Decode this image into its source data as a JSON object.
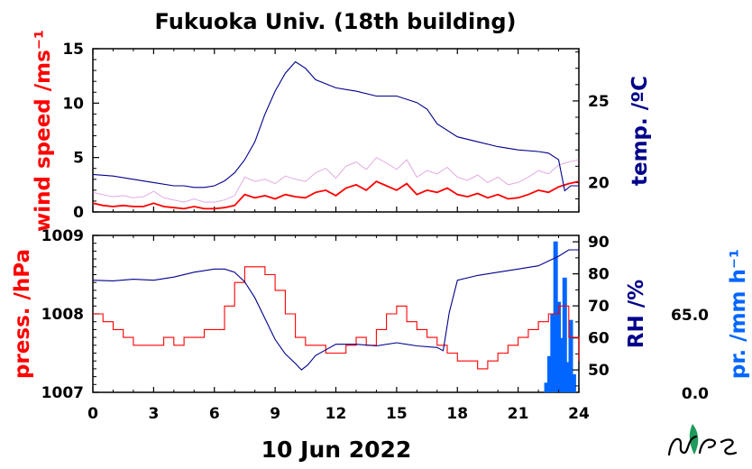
{
  "title": "Fukuoka Univ. (18th building)",
  "date_label": "10 Jun 2022",
  "logo_text": "NIES",
  "colors": {
    "wind": "#ff0000",
    "gust": "#cc66cc",
    "temp": "#00008b",
    "press": "#ff0000",
    "rh": "#00008b",
    "precip": "#0066ff"
  },
  "chart_data": [
    {
      "type": "line",
      "panel": "upper",
      "x_ticks": [
        "0",
        "3",
        "6",
        "9",
        "12",
        "15",
        "18",
        "21",
        "24"
      ],
      "xlim": [
        0,
        24
      ],
      "left_axis": {
        "label": "wind speed /ms⁻¹",
        "ticks": [
          "0",
          "5",
          "10",
          "15"
        ],
        "ylim": [
          0,
          15
        ]
      },
      "right_axis": {
        "label": "temp. /ºC",
        "ticks": [
          "20",
          "25"
        ],
        "ylim": [
          18.2,
          28.2
        ]
      },
      "series": [
        {
          "name": "wind speed",
          "axis": "left",
          "x": [
            0,
            0.5,
            1,
            1.5,
            2,
            2.5,
            3,
            3.5,
            4,
            4.5,
            5,
            5.5,
            6,
            6.5,
            7,
            7.5,
            8,
            8.5,
            9,
            9.5,
            10,
            10.5,
            11,
            11.5,
            12,
            12.5,
            13,
            13.5,
            14,
            14.5,
            15,
            15.5,
            16,
            16.5,
            17,
            17.5,
            18,
            18.5,
            19,
            19.5,
            20,
            20.5,
            21,
            21.5,
            22,
            22.5,
            23,
            23.5,
            24
          ],
          "y": [
            0.8,
            0.6,
            0.5,
            0.6,
            0.5,
            0.5,
            0.8,
            0.5,
            0.4,
            0.3,
            0.5,
            0.3,
            0.3,
            0.4,
            0.6,
            1.6,
            1.3,
            1.5,
            1.2,
            1.6,
            1.4,
            1.3,
            1.8,
            2.0,
            1.5,
            2.2,
            2.5,
            2.0,
            2.8,
            2.4,
            2.0,
            2.6,
            1.6,
            2.0,
            1.8,
            2.2,
            1.6,
            1.4,
            1.7,
            1.3,
            1.6,
            1.2,
            1.3,
            1.6,
            2.0,
            1.8,
            2.3,
            2.6,
            2.8
          ]
        },
        {
          "name": "max wind speed",
          "axis": "left",
          "x": [
            0,
            0.5,
            1,
            1.5,
            2,
            2.5,
            3,
            3.5,
            4,
            4.5,
            5,
            5.5,
            6,
            6.5,
            7,
            7.5,
            8,
            8.5,
            9,
            9.5,
            10,
            10.5,
            11,
            11.5,
            12,
            12.5,
            13,
            13.5,
            14,
            14.5,
            15,
            15.5,
            16,
            16.5,
            17,
            17.5,
            18,
            18.5,
            19,
            19.5,
            20,
            20.5,
            21,
            21.5,
            22,
            22.5,
            23,
            23.5,
            24
          ],
          "y": [
            1.8,
            1.6,
            1.4,
            1.5,
            1.3,
            1.4,
            1.9,
            1.3,
            1.1,
            0.9,
            1.2,
            0.9,
            0.9,
            1.1,
            1.5,
            3.2,
            2.8,
            3.0,
            2.6,
            3.3,
            3.0,
            2.8,
            3.6,
            4.0,
            3.1,
            4.2,
            4.6,
            3.9,
            5.0,
            4.5,
            3.9,
            4.8,
            3.2,
            3.8,
            3.5,
            4.1,
            3.2,
            2.9,
            3.4,
            2.7,
            3.2,
            2.5,
            2.7,
            3.2,
            3.8,
            3.5,
            4.3,
            4.6,
            4.8
          ]
        },
        {
          "name": "temperature",
          "axis": "right",
          "x": [
            0,
            1,
            2,
            3,
            4,
            4.5,
            5,
            5.5,
            6,
            6.5,
            7,
            7.5,
            8,
            8.5,
            9,
            9.5,
            10,
            10.5,
            11,
            12,
            13,
            14,
            15,
            16,
            16.5,
            17,
            18,
            19,
            20,
            21,
            22,
            22.5,
            23,
            23.3,
            23.6,
            24
          ],
          "y": [
            20.5,
            20.4,
            20.2,
            20.0,
            19.8,
            19.8,
            19.7,
            19.7,
            19.8,
            20.1,
            20.6,
            21.4,
            22.5,
            24.2,
            25.6,
            26.7,
            27.4,
            27.0,
            26.3,
            25.8,
            25.6,
            25.3,
            25.3,
            24.9,
            24.5,
            23.6,
            22.8,
            22.5,
            22.2,
            22.0,
            21.9,
            21.8,
            21.4,
            19.5,
            19.8,
            19.8
          ]
        }
      ]
    },
    {
      "type": "line",
      "panel": "lower",
      "x_ticks": [
        "0",
        "3",
        "6",
        "9",
        "12",
        "15",
        "18",
        "21",
        "24"
      ],
      "xlim": [
        0,
        24
      ],
      "left_axis": {
        "label": "press. /hPa",
        "ticks": [
          "1007",
          "1008",
          "1009"
        ],
        "ylim": [
          1007,
          1009
        ]
      },
      "right_axis": {
        "label": "RH /%",
        "ticks": [
          "50",
          "60",
          "70",
          "80",
          "90"
        ],
        "ylim": [
          43,
          92
        ]
      },
      "precip_axis": {
        "label": "pr. /mm h⁻¹",
        "ticks": [
          "0.0",
          "65.0"
        ]
      },
      "series": [
        {
          "name": "pressure",
          "axis": "left",
          "x": [
            0,
            0.5,
            1,
            1.5,
            2,
            2.5,
            3,
            3.5,
            4,
            4.5,
            5,
            5.5,
            6,
            6.5,
            7,
            7.5,
            8,
            8.5,
            9,
            9.5,
            10,
            10.5,
            11,
            11.5,
            12,
            12.5,
            13,
            13.5,
            14,
            14.5,
            15,
            15.5,
            16,
            16.5,
            17,
            17.5,
            18,
            18.5,
            19,
            19.5,
            20,
            20.5,
            21,
            21.5,
            22,
            22.5,
            23,
            23.5,
            24
          ],
          "y": [
            1008.0,
            1007.9,
            1007.8,
            1007.7,
            1007.6,
            1007.6,
            1007.6,
            1007.7,
            1007.6,
            1007.7,
            1007.7,
            1007.8,
            1007.8,
            1008.1,
            1008.4,
            1008.6,
            1008.6,
            1008.5,
            1008.3,
            1008.0,
            1007.7,
            1007.6,
            1007.6,
            1007.5,
            1007.5,
            1007.6,
            1007.7,
            1007.6,
            1007.8,
            1008.0,
            1008.1,
            1007.9,
            1007.8,
            1007.7,
            1007.6,
            1007.5,
            1007.4,
            1007.4,
            1007.3,
            1007.4,
            1007.5,
            1007.6,
            1007.7,
            1007.8,
            1007.9,
            1008.0,
            1008.1,
            1007.7,
            1007.4
          ]
        },
        {
          "name": "relative humidity",
          "axis": "right",
          "x": [
            0,
            1,
            2,
            3,
            4,
            5,
            6,
            6.5,
            7,
            7.5,
            8,
            8.5,
            9,
            9.5,
            10,
            10.3,
            10.6,
            11,
            12,
            13,
            14,
            15,
            16,
            17,
            17.3,
            17.6,
            18,
            19,
            20,
            21,
            22,
            22.5,
            23,
            23.5,
            24
          ],
          "y": [
            78.0,
            77.8,
            78.3,
            78.0,
            79.0,
            80.5,
            81.5,
            81.5,
            80.5,
            77.5,
            72.5,
            66.0,
            59.5,
            55.0,
            52.0,
            50.0,
            51.5,
            54.5,
            58.0,
            58.0,
            57.5,
            58.5,
            57.5,
            57.0,
            56.0,
            68.0,
            78.0,
            79.5,
            80.5,
            81.5,
            82.5,
            84.0,
            85.5,
            87.5,
            87.5
          ]
        },
        {
          "name": "precipitation",
          "axis": "precip",
          "x": [
            22.4,
            22.55,
            22.7,
            22.85,
            23.0,
            23.15,
            23.3,
            23.45,
            23.6,
            23.75
          ],
          "y": [
            8,
            30,
            65,
            125,
            75,
            45,
            95,
            25,
            60,
            15
          ]
        }
      ]
    }
  ]
}
